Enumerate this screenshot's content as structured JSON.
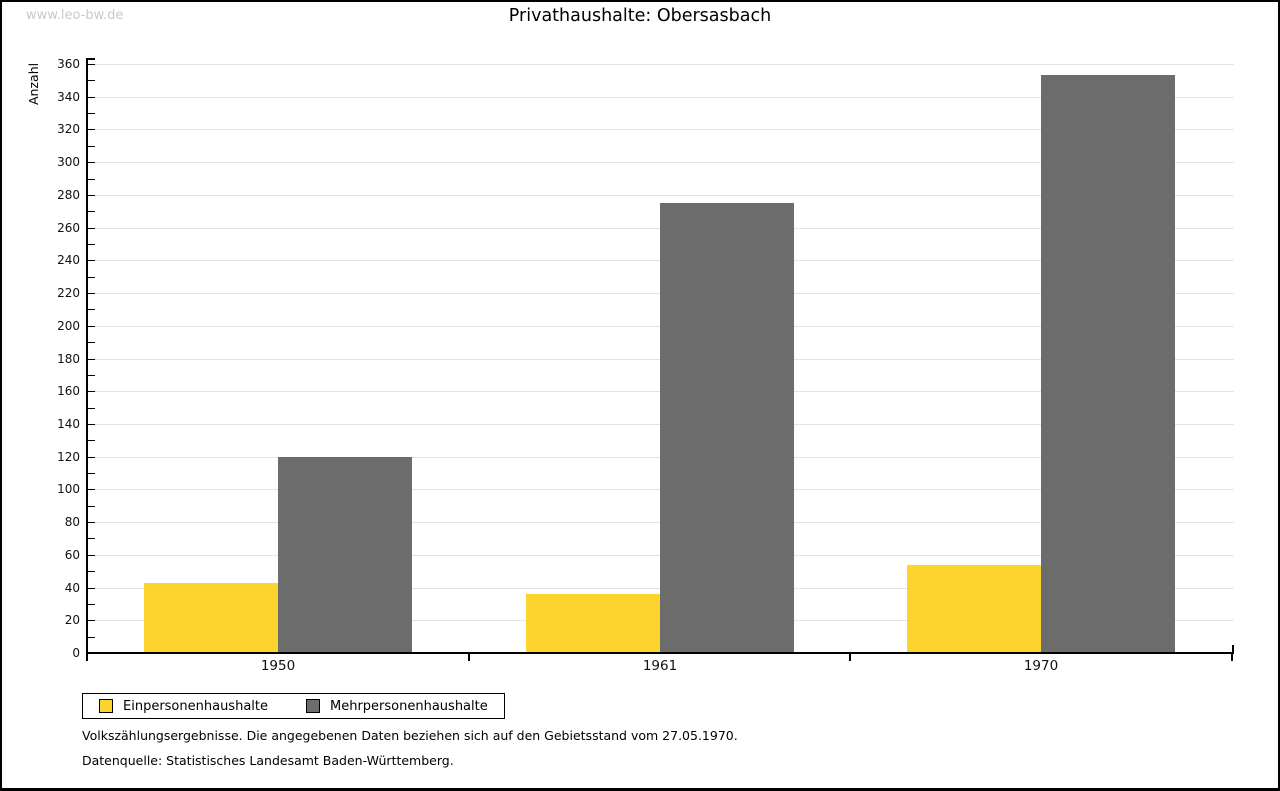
{
  "watermark": "www.leo-bw.de",
  "title": "Privathaushalte: Obersasbach",
  "chart_data": {
    "type": "bar",
    "title": "Privathaushalte: Obersasbach",
    "categories": [
      "1950",
      "1961",
      "1970"
    ],
    "series": [
      {
        "name": "Einpersonenhaushalte",
        "color": "#fcd42d",
        "values": [
          43,
          36,
          54
        ]
      },
      {
        "name": "Mehrpersonenhaushalte",
        "color": "#6c6c6c",
        "values": [
          120,
          275,
          353
        ]
      }
    ],
    "xlabel": "",
    "ylabel": "Anzahl",
    "ylim": [
      0,
      360
    ],
    "ytick_major_step": 20,
    "ytick_minor_step": 10,
    "grid": true,
    "gridline_color": "#e2e2e2",
    "legend_position": "bottom-left"
  },
  "footnotes": [
    "Volkszählungsergebnisse. Die angegebenen Daten beziehen sich auf den Gebietsstand vom 27.05.1970.",
    "Datenquelle: Statistisches Landesamt Baden-Württemberg."
  ]
}
